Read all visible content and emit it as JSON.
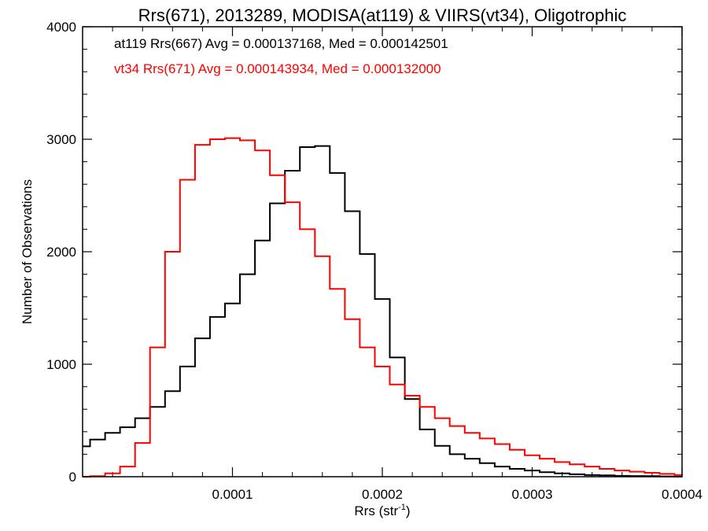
{
  "chart_data": {
    "type": "line",
    "title": "Rrs(671), 2013289, MODISA(at119) & VIIRS(vt34), Oligotrophic",
    "xlabel": {
      "main": "Rrs (str",
      "sup": "-1",
      "close": ")"
    },
    "ylabel": "Number of Observations",
    "xlim": [
      0,
      0.0004
    ],
    "ylim": [
      0,
      4000
    ],
    "x_ticks": [
      {
        "value": 0.0001,
        "label": "0.0001"
      },
      {
        "value": 0.0002,
        "label": "0.0002"
      },
      {
        "value": 0.0003,
        "label": "0.0003"
      },
      {
        "value": 0.0004,
        "label": "0.0004"
      }
    ],
    "y_ticks": [
      {
        "value": 0,
        "label": "0"
      },
      {
        "value": 1000,
        "label": "1000"
      },
      {
        "value": 2000,
        "label": "2000"
      },
      {
        "value": 3000,
        "label": "3000"
      },
      {
        "value": 4000,
        "label": "4000"
      }
    ],
    "x_minor_step": 2e-05,
    "y_minor_step": 200,
    "grid": false,
    "annotations": [
      {
        "text": "at119 Rrs(667) Avg = 0.000137168, Med = 0.000142501",
        "color": "#000000"
      },
      {
        "text": "vt34 Rrs(671) Avg = 0.000143934, Med = 0.000132000",
        "color": "#ff0000"
      }
    ],
    "series": [
      {
        "color": "#000000",
        "x": [
          0,
          1e-05,
          2e-05,
          3e-05,
          4e-05,
          5e-05,
          6e-05,
          7e-05,
          8e-05,
          9e-05,
          0.0001,
          0.00011,
          0.00012,
          0.00013,
          0.00014,
          0.00015,
          0.00016,
          0.00017,
          0.00018,
          0.00019,
          0.0002,
          0.00021,
          0.00022,
          0.00023,
          0.00024,
          0.00025,
          0.00026,
          0.00027,
          0.00028,
          0.00029,
          0.0003,
          0.00031,
          0.00032,
          0.00033,
          0.00034,
          0.00035,
          0.00036,
          0.00037,
          0.00038,
          0.00039,
          0.0004
        ],
        "y": [
          270,
          330,
          390,
          440,
          520,
          620,
          760,
          980,
          1230,
          1420,
          1540,
          1800,
          2100,
          2430,
          2720,
          2930,
          2940,
          2700,
          2360,
          1980,
          1580,
          1060,
          690,
          420,
          275,
          200,
          160,
          120,
          90,
          70,
          55,
          40,
          30,
          22,
          15,
          12,
          8,
          6,
          5,
          3,
          2
        ]
      },
      {
        "color": "#ff0000",
        "x": [
          0,
          1e-05,
          2e-05,
          3e-05,
          4e-05,
          5e-05,
          6e-05,
          7e-05,
          8e-05,
          9e-05,
          0.0001,
          0.00011,
          0.00012,
          0.00013,
          0.00014,
          0.00015,
          0.00016,
          0.00017,
          0.00018,
          0.00019,
          0.0002,
          0.00021,
          0.00022,
          0.00023,
          0.00024,
          0.00025,
          0.00026,
          0.00027,
          0.00028,
          0.00029,
          0.0003,
          0.00031,
          0.00032,
          0.00033,
          0.00034,
          0.00035,
          0.00036,
          0.00037,
          0.00038,
          0.00039,
          0.0004
        ],
        "y": [
          0,
          5,
          30,
          90,
          300,
          1150,
          2000,
          2640,
          2950,
          3000,
          3010,
          2990,
          2900,
          2680,
          2440,
          2200,
          1960,
          1670,
          1400,
          1150,
          980,
          820,
          720,
          620,
          520,
          450,
          390,
          340,
          290,
          240,
          190,
          160,
          130,
          110,
          90,
          70,
          55,
          45,
          35,
          25,
          15
        ]
      }
    ]
  }
}
